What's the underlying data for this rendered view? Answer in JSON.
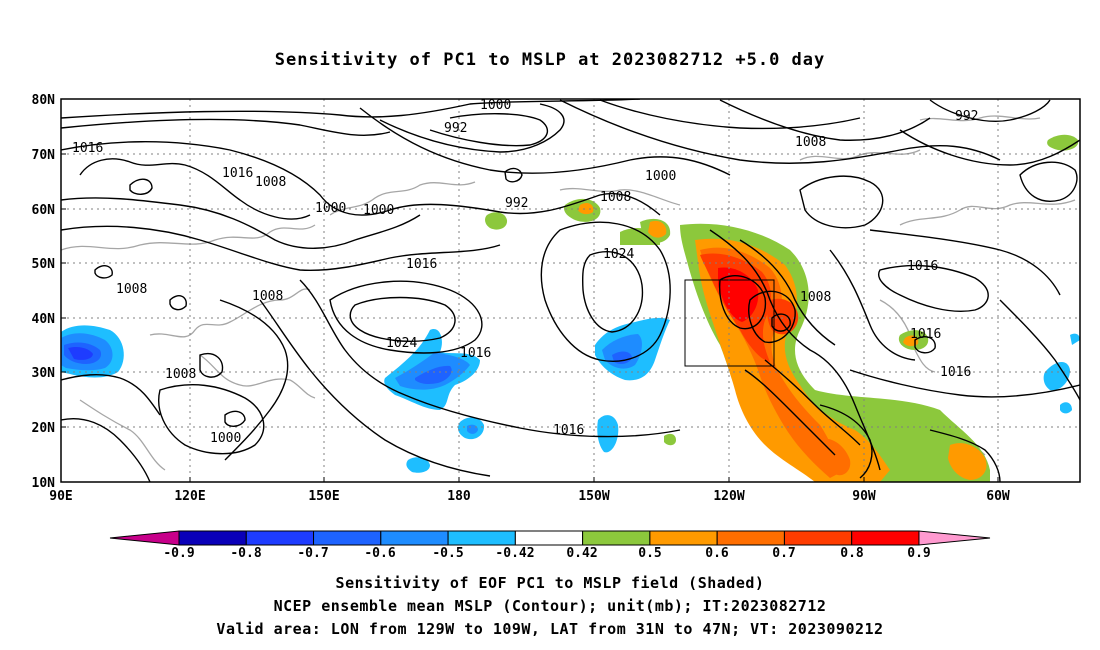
{
  "title": "Sensitivity of PC1 to MSLP at 2023082712 +5.0 day",
  "axes": {
    "lat_labels": [
      "80N",
      "70N",
      "60N",
      "50N",
      "40N",
      "30N",
      "20N",
      "10N"
    ],
    "lon_labels": [
      "90E",
      "120E",
      "150E",
      "180",
      "150W",
      "120W",
      "90W",
      "60W"
    ]
  },
  "contour_labels": [
    "1000",
    "992",
    "1016",
    "1008",
    "1016",
    "1008",
    "1000",
    "1000",
    "992",
    "1000",
    "1008",
    "1008",
    "1024",
    "1016",
    "1008",
    "1008",
    "1024",
    "1016",
    "1008",
    "1000",
    "1016",
    "1008",
    "992",
    "1016",
    "1016",
    "1016"
  ],
  "colorbar": {
    "labels": [
      "-0.9",
      "-0.8",
      "-0.7",
      "-0.6",
      "-0.5",
      "-0.42",
      "0.42",
      "0.5",
      "0.6",
      "0.7",
      "0.8",
      "0.9"
    ],
    "colors": [
      "#c7008a",
      "#0a00b8",
      "#1e3cff",
      "#1e63ff",
      "#1e8cff",
      "#1ebeff",
      "#ffffff",
      "#8cc83c",
      "#ff9a00",
      "#ff6e00",
      "#ff3c00",
      "#ff0000",
      "#ff9ad0"
    ]
  },
  "footer": {
    "line1": "Sensitivity of EOF PC1 to MSLP field (Shaded)",
    "line2": "NCEP ensemble mean MSLP (Contour); unit(mb); IT:2023082712",
    "line3": "Valid area: LON from 129W to 109W, LAT from 31N to 47N; VT: 2023090212"
  }
}
